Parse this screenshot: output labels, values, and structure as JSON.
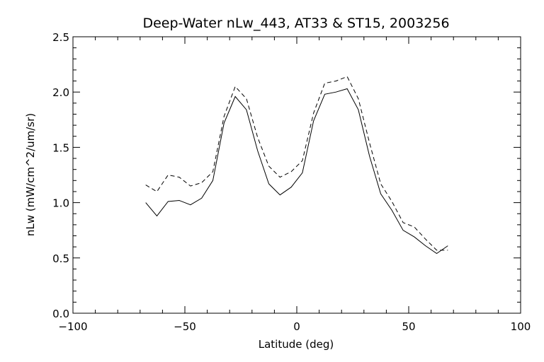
{
  "chart_data": {
    "type": "line",
    "title": "Deep-Water nLw_443, AT33 & ST15, 2003256",
    "xlabel": "Latitude (deg)",
    "ylabel": "nLw (mW/cm^2/um/sr)",
    "xlim": [
      -100,
      100
    ],
    "ylim": [
      0.0,
      2.5
    ],
    "xticks": [
      -100,
      -50,
      0,
      50,
      100
    ],
    "xtick_labels": [
      "−100",
      "−50",
      "0",
      "50",
      "100"
    ],
    "yticks": [
      0.0,
      0.5,
      1.0,
      1.5,
      2.0,
      2.5
    ],
    "ytick_labels": [
      "0.0",
      "0.5",
      "1.0",
      "1.5",
      "2.0",
      "2.5"
    ],
    "grid": false,
    "x": [
      -67.5,
      -62.5,
      -57.5,
      -52.5,
      -47.5,
      -42.5,
      -37.5,
      -32.5,
      -27.5,
      -22.5,
      -17.5,
      -12.5,
      -7.5,
      -2.5,
      2.5,
      7.5,
      12.5,
      17.5,
      22.5,
      27.5,
      32.5,
      37.5,
      42.5,
      47.5,
      52.5,
      57.5,
      62.5,
      67.5
    ],
    "series": [
      {
        "style": "solid",
        "color": "#000000",
        "values": [
          1.0,
          0.88,
          1.01,
          1.02,
          0.98,
          1.04,
          1.2,
          1.72,
          1.96,
          1.84,
          1.47,
          1.17,
          1.07,
          1.14,
          1.27,
          1.74,
          1.98,
          2.0,
          2.03,
          1.84,
          1.42,
          1.08,
          0.93,
          0.75,
          0.69,
          0.61,
          0.54,
          0.61
        ]
      },
      {
        "style": "dashed",
        "color": "#000000",
        "values": [
          1.16,
          1.1,
          1.25,
          1.23,
          1.15,
          1.18,
          1.28,
          1.78,
          2.05,
          1.94,
          1.59,
          1.33,
          1.23,
          1.28,
          1.38,
          1.81,
          2.08,
          2.1,
          2.14,
          1.94,
          1.54,
          1.17,
          1.01,
          0.82,
          0.78,
          0.67,
          0.57,
          0.57
        ]
      }
    ]
  }
}
